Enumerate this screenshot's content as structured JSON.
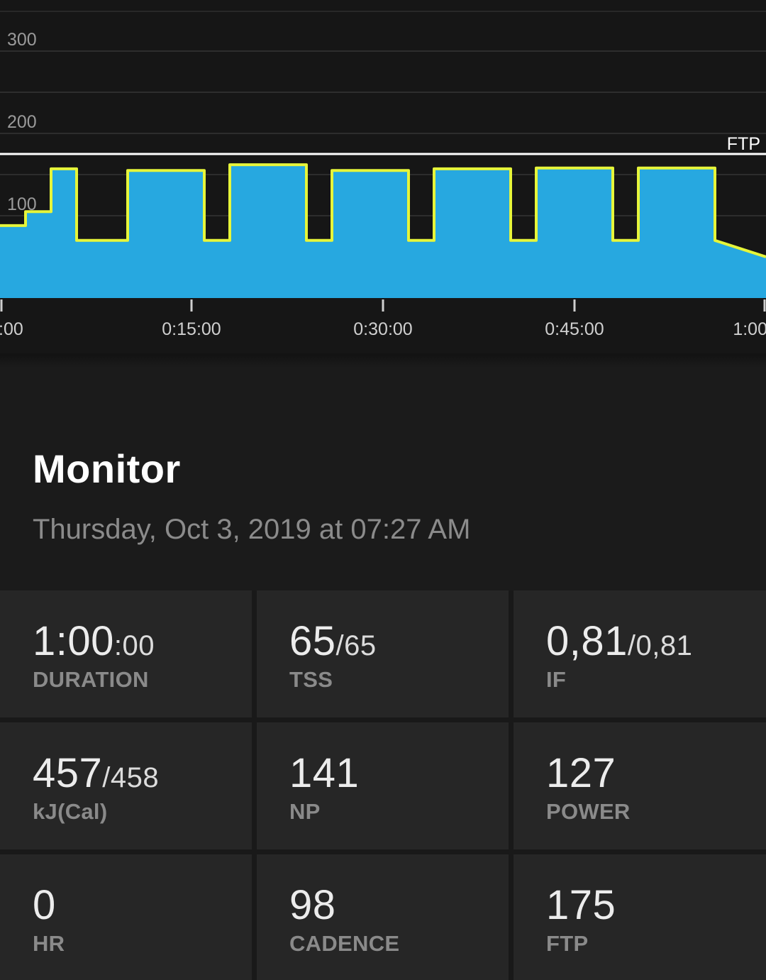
{
  "chart_data": {
    "type": "area",
    "title": "",
    "y_ticks": [
      "300",
      "200",
      "100"
    ],
    "x_ticks": [
      ":00",
      "0:15:00",
      "0:30:00",
      "0:45:00",
      "1:00"
    ],
    "ylim": [
      0,
      350
    ],
    "xlim_minutes": [
      0,
      60
    ],
    "ftp_line": {
      "value": 175,
      "label": "FTP"
    },
    "x_minutes": [
      0,
      2,
      2,
      4,
      4,
      6,
      6,
      10,
      10,
      16,
      16,
      18,
      18,
      24,
      24,
      26,
      26,
      32,
      32,
      34,
      34,
      40,
      40,
      42,
      42,
      48,
      48,
      50,
      50,
      56,
      56,
      60
    ],
    "y_watts": [
      88,
      88,
      105,
      105,
      157,
      157,
      70,
      70,
      155,
      155,
      70,
      70,
      162,
      162,
      70,
      70,
      155,
      155,
      70,
      70,
      157,
      157,
      70,
      70,
      158,
      158,
      70,
      70,
      158,
      158,
      70,
      50
    ],
    "fill_color": "#27a8e0",
    "line_color": "#e6f53a",
    "ftp_color": "#ffffff"
  },
  "activity": {
    "title": "Monitor",
    "date": "Thursday, Oct 3, 2019 at 07:27 AM"
  },
  "stats": [
    {
      "value": "1:00",
      "sub": ":00",
      "label": "DURATION"
    },
    {
      "value": "65",
      "sub": "/65",
      "label": "TSS"
    },
    {
      "value": "0,81",
      "sub": "/0,81",
      "label": "IF"
    },
    {
      "value": "457",
      "sub": "/458",
      "label": "kJ(Cal)"
    },
    {
      "value": "141",
      "sub": "",
      "label": "NP"
    },
    {
      "value": "127",
      "sub": "",
      "label": "POWER"
    },
    {
      "value": "0",
      "sub": "",
      "label": "HR"
    },
    {
      "value": "98",
      "sub": "",
      "label": "CADENCE"
    },
    {
      "value": "175",
      "sub": "",
      "label": "FTP"
    }
  ]
}
